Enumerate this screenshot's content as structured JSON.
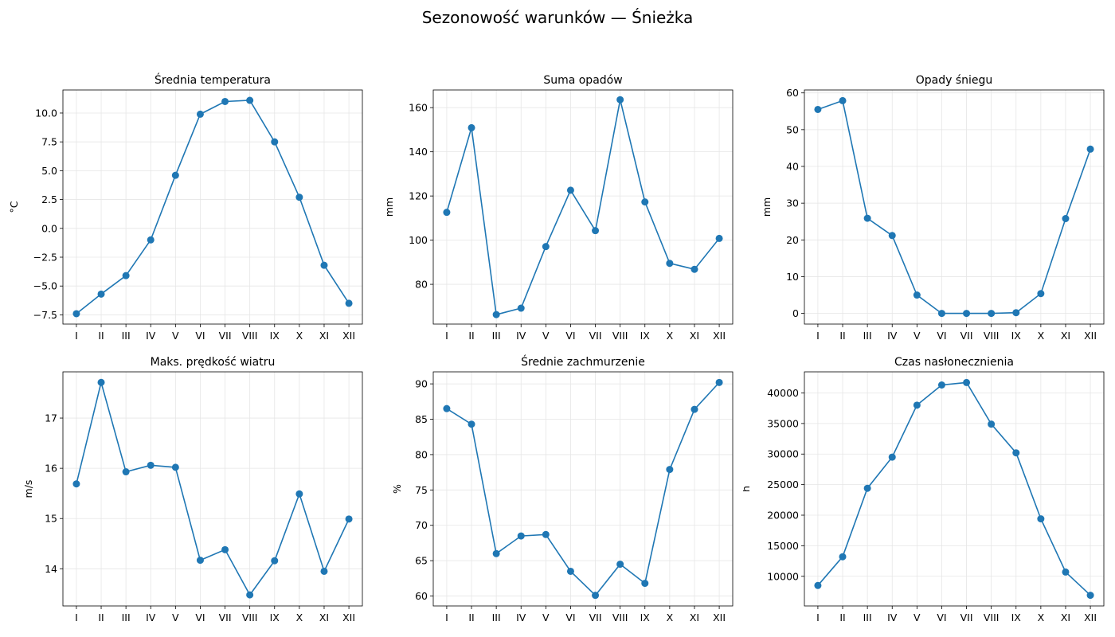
{
  "suptitle": "Sezonowość warunków — Śnieżka",
  "months": [
    "I",
    "II",
    "III",
    "IV",
    "V",
    "VI",
    "VII",
    "VIII",
    "IX",
    "X",
    "XI",
    "XII"
  ],
  "colors": {
    "line": "#1f77b4",
    "grid": "#e6e6e6",
    "axis": "#000000"
  },
  "chart_data": [
    {
      "type": "line",
      "title": "Średnia temperatura",
      "ylabel": "°C",
      "categories": [
        "I",
        "II",
        "III",
        "IV",
        "V",
        "VI",
        "VII",
        "VIII",
        "IX",
        "X",
        "XI",
        "XII"
      ],
      "values": [
        -7.4,
        -5.7,
        -4.1,
        -1.0,
        4.6,
        9.9,
        11.0,
        11.1,
        7.5,
        2.7,
        -3.2,
        -6.5
      ],
      "ylim": [
        -8.3,
        12.0
      ],
      "yticks": [
        -7.5,
        -5.0,
        -2.5,
        0.0,
        2.5,
        5.0,
        7.5,
        10.0
      ],
      "ytick_labels": [
        "−7.5",
        "−5.0",
        "−2.5",
        "0.0",
        "2.5",
        "5.0",
        "7.5",
        "10.0"
      ],
      "grid": true
    },
    {
      "type": "line",
      "title": "Suma opadów",
      "ylabel": "mm",
      "categories": [
        "I",
        "II",
        "III",
        "IV",
        "V",
        "VI",
        "VII",
        "VIII",
        "IX",
        "X",
        "XI",
        "XII"
      ],
      "values": [
        112.6,
        150.9,
        66.3,
        69.2,
        97.1,
        122.6,
        104.3,
        163.6,
        117.3,
        89.5,
        86.8,
        100.8
      ],
      "ylim": [
        62.0,
        168.0
      ],
      "yticks": [
        80,
        100,
        120,
        140,
        160
      ],
      "ytick_labels": [
        "80",
        "100",
        "120",
        "140",
        "160"
      ],
      "grid": true
    },
    {
      "type": "line",
      "title": "Opady śniegu",
      "ylabel": "mm",
      "categories": [
        "I",
        "II",
        "III",
        "IV",
        "V",
        "VI",
        "VII",
        "VIII",
        "IX",
        "X",
        "XI",
        "XII"
      ],
      "values": [
        55.5,
        57.9,
        25.9,
        21.2,
        5.0,
        0.0,
        0.0,
        0.0,
        0.2,
        5.4,
        25.8,
        44.7
      ],
      "ylim": [
        -2.9,
        60.8
      ],
      "yticks": [
        0,
        10,
        20,
        30,
        40,
        50,
        60
      ],
      "ytick_labels": [
        "0",
        "10",
        "20",
        "30",
        "40",
        "50",
        "60"
      ],
      "grid": true
    },
    {
      "type": "line",
      "title": "Maks. prędkość wiatru",
      "ylabel": "m/s",
      "categories": [
        "I",
        "II",
        "III",
        "IV",
        "V",
        "VI",
        "VII",
        "VIII",
        "IX",
        "X",
        "XI",
        "XII"
      ],
      "values": [
        15.69,
        17.71,
        15.93,
        16.06,
        16.02,
        14.17,
        14.38,
        13.48,
        14.16,
        15.49,
        13.95,
        14.99
      ],
      "ylim": [
        13.26,
        17.92
      ],
      "yticks": [
        14,
        15,
        16,
        17
      ],
      "ytick_labels": [
        "14",
        "15",
        "16",
        "17"
      ],
      "grid": true
    },
    {
      "type": "line",
      "title": "Średnie zachmurzenie",
      "ylabel": "%",
      "categories": [
        "I",
        "II",
        "III",
        "IV",
        "V",
        "VI",
        "VII",
        "VIII",
        "IX",
        "X",
        "XI",
        "XII"
      ],
      "values": [
        86.5,
        84.3,
        66.0,
        68.5,
        68.7,
        63.5,
        60.1,
        64.5,
        61.8,
        77.9,
        86.4,
        90.2
      ],
      "ylim": [
        58.6,
        91.7
      ],
      "yticks": [
        60,
        65,
        70,
        75,
        80,
        85,
        90
      ],
      "ytick_labels": [
        "60",
        "65",
        "70",
        "75",
        "80",
        "85",
        "90"
      ],
      "grid": true
    },
    {
      "type": "line",
      "title": "Czas nasłonecznienia",
      "ylabel": "h",
      "categories": [
        "I",
        "II",
        "III",
        "IV",
        "V",
        "VI",
        "VII",
        "VIII",
        "IX",
        "X",
        "XI",
        "XII"
      ],
      "values": [
        8500,
        13200,
        24400,
        29500,
        38000,
        41300,
        41700,
        34900,
        30200,
        19400,
        10700,
        6900
      ],
      "ylim": [
        5150,
        43450
      ],
      "yticks": [
        10000,
        15000,
        20000,
        25000,
        30000,
        35000,
        40000
      ],
      "ytick_labels": [
        "10000",
        "15000",
        "20000",
        "25000",
        "30000",
        "35000",
        "40000"
      ],
      "grid": true
    }
  ]
}
